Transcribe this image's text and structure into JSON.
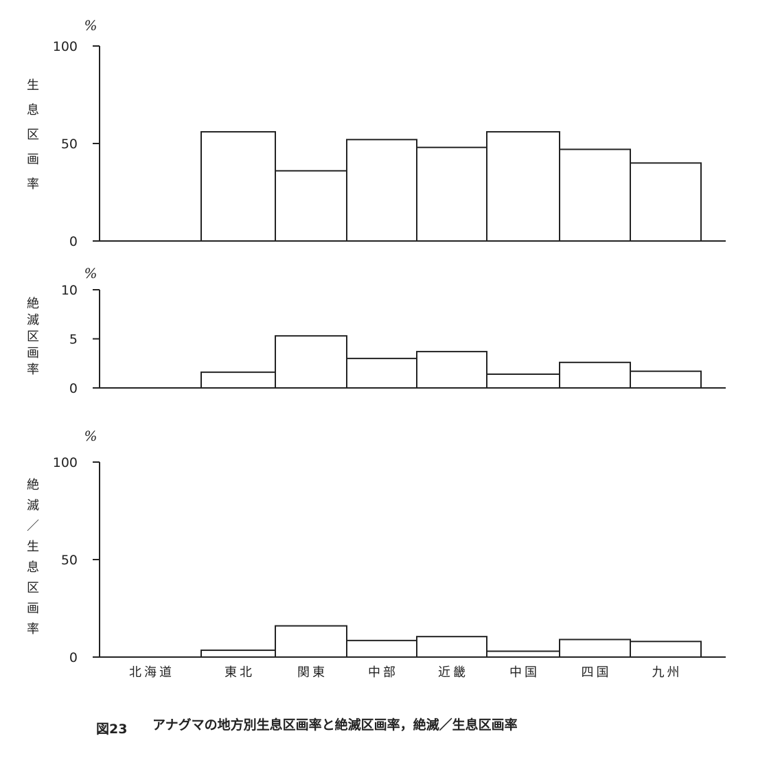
{
  "caption": {
    "number": "図23",
    "text": "アナグマの地方別生息区画率と絶滅区画率，絶滅／生息区画率"
  },
  "chart_data": [
    {
      "type": "bar",
      "unit": "%",
      "ylabel": "生息区画率",
      "ylim": [
        0,
        100
      ],
      "yticks": [
        "0",
        "50",
        "100"
      ],
      "categories": [
        "北海道",
        "東北",
        "関東",
        "中部",
        "近畿",
        "中国",
        "四国",
        "九州"
      ],
      "values": [
        0,
        56,
        36,
        52,
        48,
        56,
        47,
        40
      ]
    },
    {
      "type": "bar",
      "unit": "%",
      "ylabel": "絶滅区画率",
      "ylim": [
        0,
        10
      ],
      "yticks": [
        "0",
        "5",
        "10"
      ],
      "categories": [
        "北海道",
        "東北",
        "関東",
        "中部",
        "近畿",
        "中国",
        "四国",
        "九州"
      ],
      "values": [
        0,
        1.6,
        5.3,
        3.0,
        3.7,
        1.4,
        2.6,
        1.7
      ]
    },
    {
      "type": "bar",
      "unit": "%",
      "ylabel": "絶滅／生息区画率",
      "ylim": [
        0,
        100
      ],
      "yticks": [
        "0",
        "50",
        "100"
      ],
      "categories": [
        "北海道",
        "東北",
        "関東",
        "中部",
        "近畿",
        "中国",
        "四国",
        "九州"
      ],
      "values": [
        0,
        3.5,
        16,
        8.5,
        10.5,
        3,
        9,
        8
      ]
    }
  ]
}
